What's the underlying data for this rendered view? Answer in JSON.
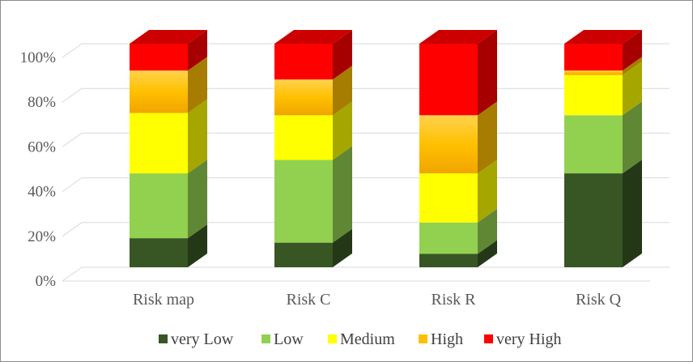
{
  "chart_data": {
    "type": "bar",
    "stacked": "percent",
    "style": "3d-column",
    "title": "",
    "xlabel": "",
    "ylabel": "",
    "ylim": [
      0,
      100
    ],
    "yticks": [
      "0%",
      "20%",
      "40%",
      "60%",
      "80%",
      "100%"
    ],
    "grid": true,
    "legend_position": "bottom",
    "categories": [
      "Risk map",
      "Risk C",
      "Risk R",
      "Risk Q"
    ],
    "series": [
      {
        "name": "very Low",
        "color": "#375623",
        "values": [
          13,
          11,
          6,
          42
        ]
      },
      {
        "name": "Low",
        "color": "#92d050",
        "values": [
          29,
          37,
          14,
          26
        ]
      },
      {
        "name": "Medium",
        "color": "#ffff00",
        "values": [
          27,
          20,
          22,
          18
        ]
      },
      {
        "name": "High",
        "color": "#ffc000",
        "values": [
          19,
          16,
          26,
          2
        ]
      },
      {
        "name": "very High",
        "color": "#ff0000",
        "values": [
          12,
          16,
          32,
          12
        ]
      }
    ]
  }
}
